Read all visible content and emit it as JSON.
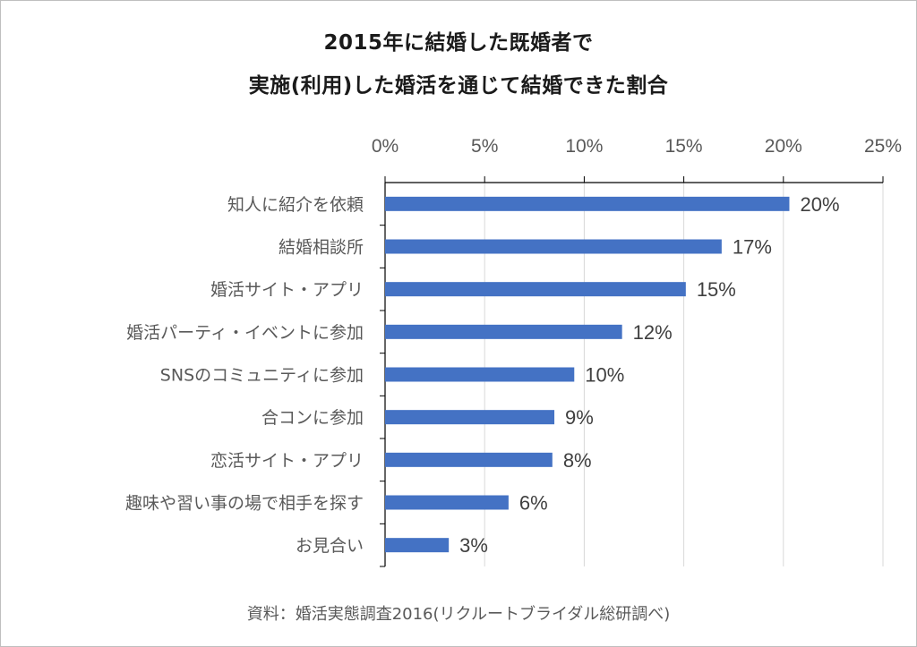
{
  "chart_data": {
    "type": "bar",
    "orientation": "horizontal",
    "title_lines": [
      "2015年に結婚した既婚者で",
      "実施(利用)した婚活を通じて結婚できた割合"
    ],
    "categories": [
      "知人に紹介を依頼",
      "結婚相談所",
      "婚活サイト・アプリ",
      "婚活パーティ・イベントに参加",
      "SNSのコミュニティに参加",
      "合コンに参加",
      "恋活サイト・アプリ",
      "趣味や習い事の場で相手を探す",
      "お見合い"
    ],
    "values": [
      20.3,
      16.9,
      15.1,
      11.9,
      9.5,
      8.5,
      8.4,
      6.2,
      3.2
    ],
    "data_labels": [
      "20%",
      "17%",
      "15%",
      "12%",
      "10%",
      "9%",
      "8%",
      "6%",
      "3%"
    ],
    "xlim": [
      0,
      25
    ],
    "x_ticks": [
      0,
      5,
      10,
      15,
      20,
      25
    ],
    "x_tick_labels": [
      "0%",
      "5%",
      "10%",
      "15%",
      "20%",
      "25%"
    ],
    "x_axis_position": "top",
    "grid": true,
    "bar_color": "#4472c4",
    "source": "資料：婚活実態調査2016(リクルートブライダル総研調べ)"
  }
}
